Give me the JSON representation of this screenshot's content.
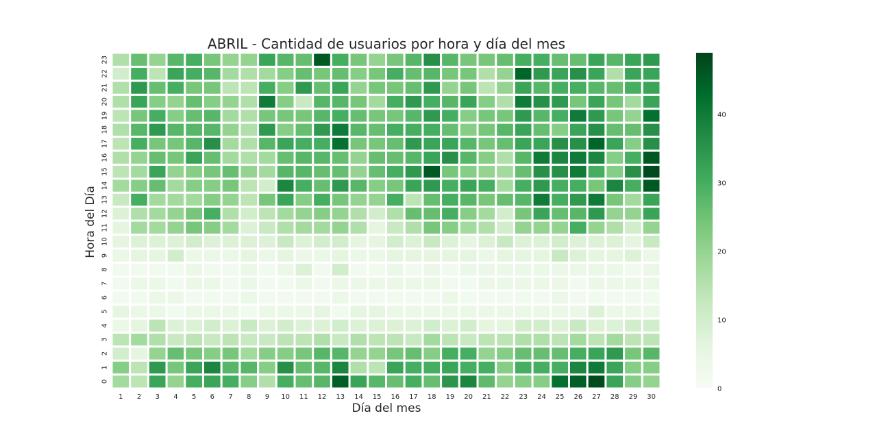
{
  "chart_data": {
    "type": "heatmap",
    "title": "ABRIL - Cantidad de usuarios por hora y día del mes",
    "xlabel": "Día del mes",
    "ylabel": "Hora del Día",
    "x": [
      1,
      2,
      3,
      4,
      5,
      6,
      7,
      8,
      9,
      10,
      11,
      12,
      13,
      14,
      15,
      16,
      17,
      18,
      19,
      20,
      21,
      22,
      23,
      24,
      25,
      26,
      27,
      28,
      29,
      30
    ],
    "y": [
      0,
      1,
      2,
      3,
      4,
      5,
      6,
      7,
      8,
      9,
      10,
      11,
      12,
      13,
      14,
      15,
      16,
      17,
      18,
      19,
      20,
      21,
      22,
      23
    ],
    "x_tick_labels": [
      "1",
      "2",
      "3",
      "4",
      "5",
      "6",
      "7",
      "8",
      "9",
      "10",
      "11",
      "12",
      "13",
      "14",
      "15",
      "16",
      "17",
      "18",
      "19",
      "20",
      "21",
      "22",
      "23",
      "24",
      "25",
      "26",
      "27",
      "28",
      "29",
      "30"
    ],
    "y_tick_labels": [
      "0",
      "1",
      "2",
      "3",
      "4",
      "5",
      "6",
      "7",
      "8",
      "9",
      "10",
      "11",
      "12",
      "13",
      "14",
      "15",
      "16",
      "17",
      "18",
      "19",
      "20",
      "21",
      "22",
      "23"
    ],
    "colorscale": "Greens",
    "color_low": "#f7fcf5",
    "color_high": "#00441b",
    "vmin": 0,
    "vmax": 49,
    "colorbar_ticks": [
      "0",
      "10",
      "20",
      "30",
      "40"
    ],
    "values": [
      [
        18,
        14,
        32,
        20,
        30,
        32,
        30,
        22,
        16,
        30,
        26,
        28,
        45,
        32,
        28,
        26,
        30,
        26,
        35,
        38,
        27,
        20,
        22,
        22,
        42,
        45,
        48,
        32,
        22,
        20
      ],
      [
        22,
        14,
        34,
        24,
        32,
        38,
        28,
        28,
        22,
        36,
        26,
        28,
        38,
        16,
        14,
        32,
        30,
        30,
        32,
        30,
        30,
        22,
        30,
        30,
        30,
        38,
        40,
        32,
        22,
        22
      ],
      [
        10,
        6,
        20,
        26,
        24,
        22,
        24,
        18,
        22,
        22,
        24,
        28,
        28,
        20,
        20,
        24,
        26,
        22,
        30,
        30,
        20,
        22,
        26,
        26,
        26,
        30,
        32,
        34,
        24,
        28
      ],
      [
        14,
        18,
        16,
        12,
        14,
        12,
        14,
        12,
        12,
        14,
        14,
        16,
        12,
        16,
        14,
        14,
        12,
        18,
        14,
        12,
        14,
        14,
        16,
        16,
        14,
        18,
        14,
        18,
        14,
        14
      ],
      [
        4,
        6,
        14,
        8,
        8,
        10,
        8,
        12,
        8,
        10,
        8,
        8,
        10,
        8,
        8,
        8,
        8,
        10,
        8,
        10,
        6,
        6,
        10,
        10,
        8,
        12,
        8,
        8,
        10,
        10
      ],
      [
        6,
        4,
        4,
        2,
        4,
        4,
        4,
        2,
        4,
        4,
        4,
        6,
        2,
        6,
        6,
        4,
        4,
        4,
        4,
        4,
        4,
        4,
        4,
        4,
        4,
        4,
        8,
        4,
        4,
        4
      ],
      [
        2,
        2,
        4,
        4,
        2,
        2,
        2,
        4,
        2,
        2,
        2,
        2,
        4,
        2,
        2,
        2,
        2,
        2,
        4,
        2,
        2,
        2,
        2,
        2,
        4,
        2,
        2,
        2,
        2,
        2
      ],
      [
        2,
        4,
        4,
        2,
        4,
        4,
        2,
        4,
        2,
        2,
        4,
        2,
        4,
        4,
        4,
        4,
        4,
        4,
        2,
        2,
        4,
        4,
        4,
        4,
        4,
        2,
        4,
        4,
        4,
        4
      ],
      [
        2,
        2,
        2,
        2,
        4,
        2,
        2,
        4,
        2,
        4,
        8,
        2,
        10,
        2,
        2,
        4,
        2,
        4,
        2,
        4,
        4,
        4,
        4,
        4,
        4,
        4,
        4,
        4,
        2,
        4
      ],
      [
        4,
        6,
        6,
        10,
        4,
        4,
        4,
        6,
        4,
        6,
        4,
        4,
        6,
        4,
        4,
        6,
        6,
        6,
        6,
        6,
        4,
        6,
        6,
        6,
        12,
        8,
        6,
        6,
        8,
        4
      ],
      [
        6,
        8,
        8,
        8,
        10,
        8,
        8,
        8,
        8,
        12,
        8,
        10,
        10,
        6,
        6,
        10,
        8,
        12,
        8,
        6,
        8,
        12,
        8,
        8,
        10,
        8,
        8,
        8,
        6,
        12
      ],
      [
        6,
        18,
        18,
        20,
        24,
        22,
        18,
        8,
        12,
        16,
        18,
        18,
        20,
        16,
        6,
        12,
        16,
        24,
        22,
        18,
        16,
        10,
        20,
        20,
        20,
        30,
        20,
        16,
        10,
        20
      ],
      [
        8,
        16,
        18,
        20,
        24,
        30,
        16,
        10,
        14,
        18,
        20,
        22,
        20,
        16,
        10,
        16,
        26,
        26,
        30,
        22,
        18,
        10,
        24,
        32,
        26,
        28,
        34,
        20,
        20,
        32
      ],
      [
        12,
        30,
        18,
        18,
        18,
        22,
        20,
        14,
        24,
        32,
        22,
        30,
        24,
        20,
        20,
        30,
        14,
        26,
        30,
        28,
        24,
        26,
        28,
        40,
        30,
        34,
        40,
        24,
        18,
        32
      ],
      [
        18,
        22,
        26,
        18,
        22,
        22,
        24,
        14,
        10,
        38,
        30,
        26,
        34,
        28,
        22,
        24,
        32,
        34,
        30,
        32,
        30,
        18,
        30,
        34,
        30,
        30,
        24,
        38,
        30,
        46
      ],
      [
        14,
        18,
        32,
        20,
        22,
        24,
        26,
        20,
        18,
        28,
        28,
        26,
        26,
        20,
        26,
        30,
        34,
        46,
        24,
        22,
        20,
        18,
        26,
        36,
        36,
        40,
        30,
        22,
        36,
        48
      ],
      [
        16,
        20,
        26,
        24,
        32,
        26,
        18,
        16,
        18,
        26,
        28,
        28,
        26,
        20,
        26,
        26,
        28,
        32,
        36,
        28,
        22,
        16,
        28,
        40,
        38,
        40,
        38,
        22,
        30,
        46
      ],
      [
        14,
        30,
        24,
        24,
        28,
        36,
        18,
        16,
        28,
        32,
        30,
        30,
        42,
        24,
        24,
        26,
        34,
        32,
        32,
        28,
        24,
        26,
        32,
        32,
        36,
        36,
        44,
        32,
        22,
        36
      ],
      [
        16,
        28,
        34,
        28,
        28,
        28,
        20,
        16,
        34,
        22,
        26,
        34,
        40,
        28,
        26,
        30,
        30,
        30,
        26,
        22,
        24,
        28,
        32,
        26,
        22,
        32,
        36,
        26,
        26,
        36
      ],
      [
        14,
        24,
        30,
        22,
        26,
        28,
        18,
        16,
        24,
        24,
        24,
        28,
        30,
        26,
        24,
        24,
        28,
        34,
        30,
        22,
        24,
        24,
        34,
        28,
        30,
        40,
        34,
        24,
        20,
        42
      ],
      [
        16,
        32,
        22,
        20,
        26,
        22,
        20,
        16,
        40,
        22,
        12,
        28,
        28,
        24,
        18,
        30,
        34,
        30,
        28,
        32,
        22,
        16,
        40,
        36,
        34,
        24,
        32,
        24,
        18,
        32
      ],
      [
        16,
        34,
        26,
        30,
        24,
        24,
        14,
        14,
        30,
        22,
        34,
        26,
        32,
        20,
        24,
        24,
        26,
        34,
        20,
        24,
        14,
        20,
        32,
        28,
        30,
        30,
        28,
        26,
        30,
        32
      ],
      [
        10,
        30,
        14,
        32,
        30,
        28,
        18,
        16,
        18,
        22,
        26,
        24,
        26,
        22,
        24,
        30,
        26,
        28,
        24,
        24,
        16,
        20,
        44,
        34,
        32,
        36,
        32,
        16,
        32,
        32
      ],
      [
        16,
        26,
        20,
        28,
        30,
        24,
        20,
        20,
        32,
        28,
        26,
        46,
        30,
        24,
        20,
        24,
        28,
        36,
        28,
        24,
        24,
        26,
        30,
        30,
        26,
        26,
        32,
        28,
        32,
        34
      ]
    ]
  }
}
